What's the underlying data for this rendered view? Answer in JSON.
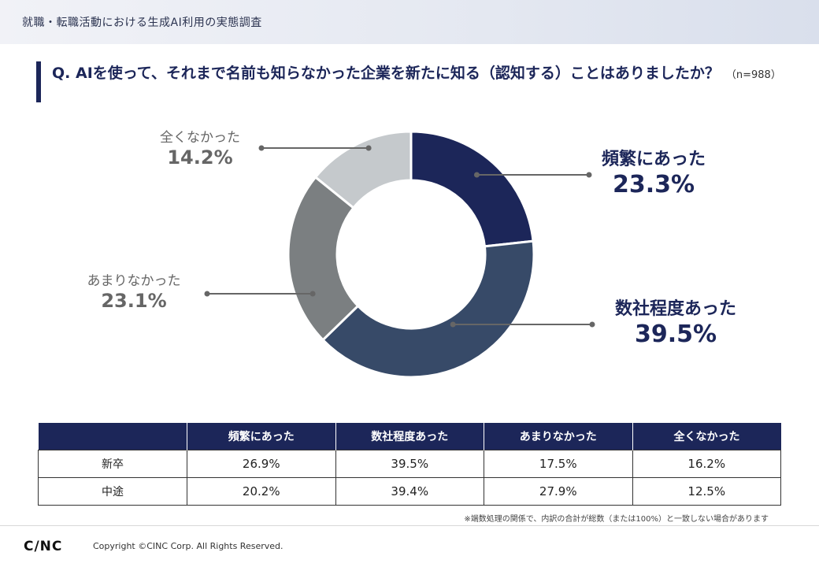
{
  "banner": {
    "title": "就職・転職活動における生成AI利用の実態調査"
  },
  "question": {
    "text": "Q. AIを使って、それまで名前も知らなかった企業を新たに知る（認知する）ことはありましたか？",
    "n": "（n=988）"
  },
  "chart_data": {
    "type": "pie",
    "donut": true,
    "categories": [
      "頻繁にあった",
      "数社程度あった",
      "あまりなかった",
      "全くなかった"
    ],
    "values": [
      23.3,
      39.5,
      23.1,
      14.2
    ],
    "value_labels": [
      "23.3%",
      "39.5%",
      "23.1%",
      "14.2%"
    ],
    "colors": [
      "#1c2659",
      "#374a68",
      "#7b7f81",
      "#c5c9cc"
    ],
    "label_colors": [
      "#1c2659",
      "#1c2659",
      "#666666",
      "#666666"
    ]
  },
  "table": {
    "headers": [
      "",
      "頻繁にあった",
      "数社程度あった",
      "あまりなかった",
      "全くなかった"
    ],
    "rows": [
      [
        "新卒",
        "26.9%",
        "39.5%",
        "17.5%",
        "16.2%"
      ],
      [
        "中途",
        "20.2%",
        "39.4%",
        "27.9%",
        "12.5%"
      ]
    ]
  },
  "footnote": "※端数処理の関係で、内訳の合計が総数（または100%）と一致しない場合があります",
  "footer": {
    "logo": "C/NC",
    "copyright": "Copyright ©CINC Corp. All Rights Reserved."
  }
}
